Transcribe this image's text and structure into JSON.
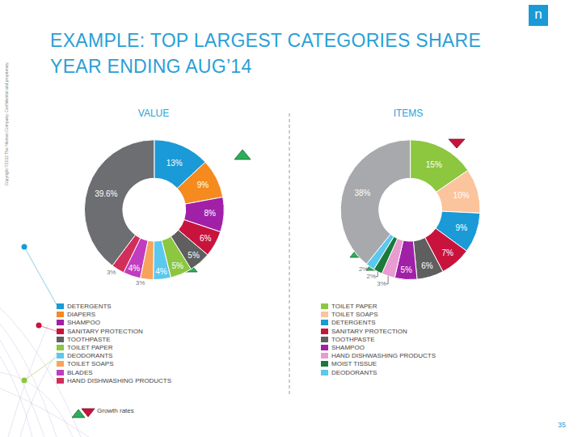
{
  "title": "EXAMPLE: TOP LARGEST CATEGORIES SHARE YEAR ENDING AUG’14",
  "logo": "n",
  "copyright": "Copyright ©2012 The Nielsen Company. Confidential and proprietary.",
  "page_number": "35",
  "growth_legend": "Growth rates",
  "chart_data": [
    {
      "type": "pie",
      "title": "VALUE",
      "data_labels": true,
      "categories": [
        "DETERGENTS",
        "DIAPERS",
        "SHAMPOO",
        "SANITARY PROTECTION",
        "TOOTHPASTE",
        "TOILET PAPER",
        "DEODORANTS",
        "TOILET SOAPS",
        "BLADES",
        "HAND DISHWASHING PRODUCTS",
        null
      ],
      "values": [
        13,
        9,
        8,
        6,
        5,
        5,
        4,
        3,
        4,
        3,
        39.6
      ],
      "value_labels": [
        "13%",
        "9%",
        "8%",
        "6%",
        "5%",
        "5%",
        "4%",
        "3%",
        "4%",
        "3%",
        "39.6%"
      ],
      "colors": [
        "#1a9ad6",
        "#f58a1f",
        "#a020a8",
        "#c8143c",
        "#5f5f5f",
        "#8dc63f",
        "#5bc8ee",
        "#f7a35c",
        "#c03cc0",
        "#d12f5a",
        "#6d6e71"
      ]
    },
    {
      "type": "pie",
      "title": "ITEMS",
      "data_labels": true,
      "categories": [
        "TOILET PAPER",
        "TOILET SOAPS",
        "DETERGENTS",
        "SANITARY PROTECTION",
        "TOOTHPASTE",
        "SHAMPOO",
        "HAND DISHWASHING PRODUCTS",
        "MOIST TISSUE",
        "DEODORANTS",
        null
      ],
      "values": [
        15,
        10,
        9,
        7,
        6,
        5,
        3,
        2,
        2,
        38
      ],
      "value_labels": [
        "15%",
        "10%",
        "9%",
        "7%",
        "6%",
        "5%",
        "3%",
        "2%",
        "2%",
        "38%"
      ],
      "colors": [
        "#8dc63f",
        "#fbc49c",
        "#1a9ad6",
        "#c8143c",
        "#5f5f5f",
        "#a020a8",
        "#e89cd0",
        "#1b7a3a",
        "#5bc8ee",
        "#a7a9ac"
      ]
    }
  ]
}
